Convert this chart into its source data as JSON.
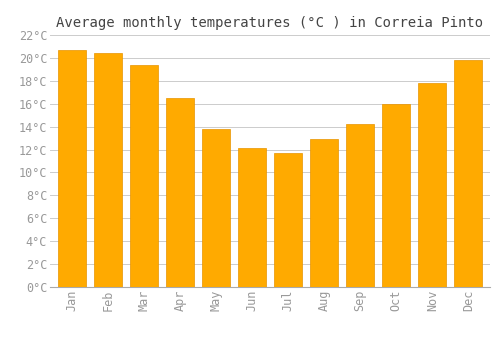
{
  "title": "Average monthly temperatures (°C ) in Correia Pinto",
  "months": [
    "Jan",
    "Feb",
    "Mar",
    "Apr",
    "May",
    "Jun",
    "Jul",
    "Aug",
    "Sep",
    "Oct",
    "Nov",
    "Dec"
  ],
  "values": [
    20.7,
    20.4,
    19.4,
    16.5,
    13.8,
    12.1,
    11.7,
    12.9,
    14.2,
    16.0,
    17.8,
    19.8
  ],
  "bar_color": "#FFAA00",
  "bar_edge_color": "#E89400",
  "background_color": "#FFFFFF",
  "grid_color": "#CCCCCC",
  "tick_label_color": "#999999",
  "title_color": "#444444",
  "ylim": [
    0,
    22
  ],
  "yticks": [
    0,
    2,
    4,
    6,
    8,
    10,
    12,
    14,
    16,
    18,
    20,
    22
  ],
  "title_fontsize": 10,
  "tick_fontsize": 8.5,
  "bar_width": 0.78
}
